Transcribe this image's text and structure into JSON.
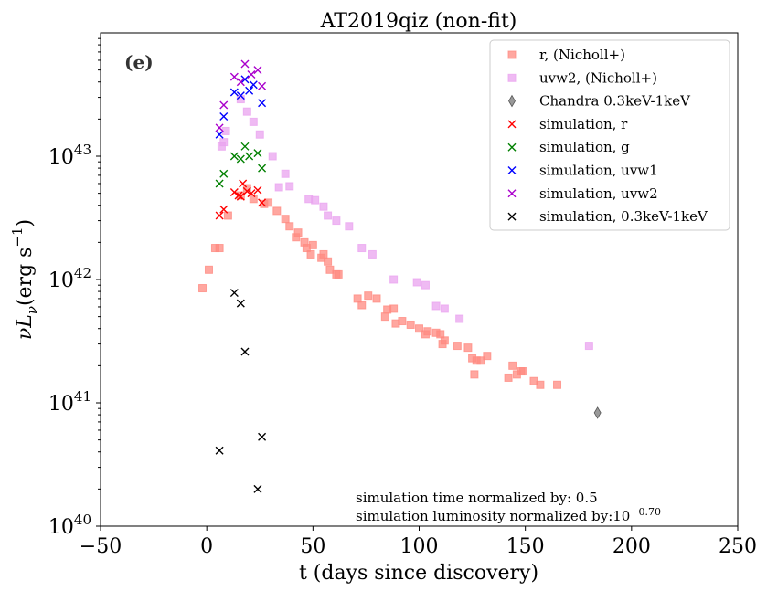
{
  "chart_data": {
    "type": "scatter",
    "title": "AT2019qiz (non-fit)",
    "panel_label": "(e)",
    "xlabel": "t (days since discovery)",
    "ylabel": "νL_ν(erg s^-1)",
    "ylabel_parts": {
      "main": "νL",
      "sub": "ν",
      "open": "(erg s",
      "sup": "−1",
      "close": ")"
    },
    "xlim": [
      -50,
      250
    ],
    "ylim": [
      10000000000000000000000000000000000000000,
      100000000000000000000000000000000000000000000
    ],
    "yscale": "log",
    "x_ticks": [
      {
        "value": -50,
        "label": "−50"
      },
      {
        "value": 0,
        "label": "0"
      },
      {
        "value": 50,
        "label": "50"
      },
      {
        "value": 100,
        "label": "100"
      },
      {
        "value": 150,
        "label": "150"
      },
      {
        "value": 200,
        "label": "200"
      },
      {
        "value": 250,
        "label": "250"
      }
    ],
    "y_ticks": [
      {
        "exp": 40,
        "base": "10",
        "sup": "40"
      },
      {
        "exp": 41,
        "base": "10",
        "sup": "41"
      },
      {
        "exp": 42,
        "base": "10",
        "sup": "42"
      },
      {
        "exp": 43,
        "base": "10",
        "sup": "43"
      }
    ],
    "legend_position": "top-right",
    "annotations": {
      "line1": "simulation time normalized by: 0.5",
      "line2": "simulation luminosity normalized by:10",
      "line2_sup": "−0.70"
    },
    "series": [
      {
        "name": "r, (Nicholl+)",
        "marker": "square",
        "color": "#ff8a80",
        "points": [
          [
            -2,
            8.5e+41
          ],
          [
            1,
            1.2e+42
          ],
          [
            4,
            1.8e+42
          ],
          [
            6,
            1.8e+42
          ],
          [
            10,
            3.3e+42
          ],
          [
            16,
            4.8e+42
          ],
          [
            19,
            5.5e+42
          ],
          [
            22,
            4.5e+42
          ],
          [
            27,
            4.1e+42
          ],
          [
            29,
            4.2e+42
          ],
          [
            33,
            3.6e+42
          ],
          [
            37,
            3.1e+42
          ],
          [
            39,
            2.7e+42
          ],
          [
            42,
            2.2e+42
          ],
          [
            43,
            2.4e+42
          ],
          [
            46,
            2e+42
          ],
          [
            47,
            1.8e+42
          ],
          [
            49,
            1.6e+42
          ],
          [
            50,
            1.9e+42
          ],
          [
            54,
            1.5e+42
          ],
          [
            55,
            1.6e+42
          ],
          [
            57,
            1.4e+42
          ],
          [
            58,
            1.2e+42
          ],
          [
            61,
            1.1e+42
          ],
          [
            62,
            1.1e+42
          ],
          [
            71,
            7e+41
          ],
          [
            73,
            6.2e+41
          ],
          [
            76,
            7.4e+41
          ],
          [
            80,
            7e+41
          ],
          [
            84,
            5e+41
          ],
          [
            85,
            5.7e+41
          ],
          [
            88,
            5.8e+41
          ],
          [
            89,
            4.4e+41
          ],
          [
            92,
            4.6e+41
          ],
          [
            96,
            4.3e+41
          ],
          [
            100,
            4e+41
          ],
          [
            103,
            3.6e+41
          ],
          [
            104,
            3.8e+41
          ],
          [
            108,
            3.7e+41
          ],
          [
            110,
            3.6e+41
          ],
          [
            111,
            3e+41
          ],
          [
            112,
            3.2e+41
          ],
          [
            118,
            2.9e+41
          ],
          [
            123,
            2.8e+41
          ],
          [
            125,
            2.3e+41
          ],
          [
            126,
            1.7e+41
          ],
          [
            127,
            2.2e+41
          ],
          [
            129,
            2.2e+41
          ],
          [
            132,
            2.4e+41
          ],
          [
            142,
            1.6e+41
          ],
          [
            144,
            2e+41
          ],
          [
            146,
            1.7e+41
          ],
          [
            148,
            1.8e+41
          ],
          [
            149,
            1.8e+41
          ],
          [
            154,
            1.5e+41
          ],
          [
            157,
            1.4e+41
          ],
          [
            165,
            1.4e+41
          ]
        ]
      },
      {
        "name": "uvw2, (Nicholl+)",
        "marker": "square",
        "color": "#e9a3ef",
        "points": [
          [
            7,
            1.2e+43
          ],
          [
            8,
            1.3e+43
          ],
          [
            9,
            1.6e+43
          ],
          [
            16,
            2.9e+43
          ],
          [
            19,
            2.3e+43
          ],
          [
            22,
            1.9e+43
          ],
          [
            25,
            1.5e+43
          ],
          [
            31,
            1e+43
          ],
          [
            34,
            5.6e+42
          ],
          [
            37,
            7.2e+42
          ],
          [
            39,
            5.7e+42
          ],
          [
            48,
            4.5e+42
          ],
          [
            51,
            4.4e+42
          ],
          [
            55,
            3.9e+42
          ],
          [
            57,
            3.3e+42
          ],
          [
            61,
            3e+42
          ],
          [
            67,
            2.7e+42
          ],
          [
            73,
            1.8e+42
          ],
          [
            78,
            1.6e+42
          ],
          [
            88,
            1e+42
          ],
          [
            99,
            9.5e+41
          ],
          [
            103,
            9e+41
          ],
          [
            108,
            6.1e+41
          ],
          [
            112,
            5.8e+41
          ],
          [
            119,
            4.8e+41
          ],
          [
            180,
            2.9e+41
          ]
        ]
      },
      {
        "name": "Chandra 0.3keV-1keV",
        "marker": "diamond",
        "color": "#808080",
        "points": [
          [
            184,
            8.3e+40
          ]
        ]
      },
      {
        "name": "simulation, r",
        "marker": "x",
        "color": "#ff0000",
        "points": [
          [
            6,
            3.3e+42
          ],
          [
            8,
            3.7e+42
          ],
          [
            13,
            5.1e+42
          ],
          [
            15,
            4.8e+42
          ],
          [
            16,
            4.7e+42
          ],
          [
            17,
            6e+42
          ],
          [
            19,
            5.2e+42
          ],
          [
            21,
            5e+42
          ],
          [
            24,
            5.3e+42
          ],
          [
            26,
            4.2e+42
          ]
        ]
      },
      {
        "name": "simulation, g",
        "marker": "x",
        "color": "#008000",
        "points": [
          [
            6,
            6e+42
          ],
          [
            8,
            7.2e+42
          ],
          [
            13,
            1e+43
          ],
          [
            16,
            9.5e+42
          ],
          [
            18,
            1.2e+43
          ],
          [
            20,
            1e+43
          ],
          [
            24,
            1.06e+43
          ],
          [
            26,
            8e+42
          ]
        ]
      },
      {
        "name": "simulation, uvw1",
        "marker": "x",
        "color": "#0000ff",
        "points": [
          [
            6,
            1.5e+43
          ],
          [
            8,
            2.1e+43
          ],
          [
            13,
            3.3e+43
          ],
          [
            16,
            3.1e+43
          ],
          [
            18,
            4.2e+43
          ],
          [
            20,
            3.4e+43
          ],
          [
            22,
            3.8e+43
          ],
          [
            26,
            2.7e+43
          ]
        ]
      },
      {
        "name": "simulation, uvw2",
        "marker": "x",
        "color": "#aa00cc",
        "points": [
          [
            6,
            1.7e+43
          ],
          [
            8,
            2.6e+43
          ],
          [
            13,
            4.4e+43
          ],
          [
            16,
            4e+43
          ],
          [
            18,
            5.6e+43
          ],
          [
            21,
            4.6e+43
          ],
          [
            24,
            5e+43
          ],
          [
            26,
            3.7e+43
          ]
        ]
      },
      {
        "name": "simulation, 0.3keV-1keV",
        "marker": "x",
        "color": "#000000",
        "points": [
          [
            6,
            4.1e+40
          ],
          [
            13,
            7.8e+41
          ],
          [
            16,
            6.4e+41
          ],
          [
            18,
            2.6e+41
          ],
          [
            24,
            2e+40
          ],
          [
            26,
            5.3e+40
          ]
        ]
      }
    ]
  }
}
